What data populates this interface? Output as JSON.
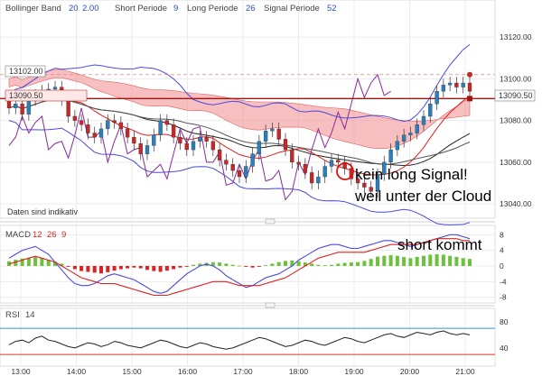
{
  "header": {
    "indicator": "Bollinger Band",
    "bb_p1": "20",
    "bb_p2": "2.00",
    "short_label": "Short Periode",
    "short_val": "9",
    "long_label": "Long Periode",
    "long_val": "26",
    "signal_label": "Signal Periode",
    "signal_val": "52"
  },
  "footer_note": "Daten sind indikativ",
  "annotations": {
    "line1": "kein long Signal!",
    "line2": "weil unter der Cloud",
    "macd_note": "short kommt"
  },
  "price_labels": {
    "left_top": "13102.00",
    "left_bottom": "13090.50",
    "right": "13090.50"
  },
  "macd_header": {
    "name": "MACD",
    "p1": "12",
    "p2": "26",
    "p3": "9"
  },
  "rsi_header": {
    "name": "RSI",
    "p1": "14"
  },
  "colors": {
    "up": "#2c7fb8",
    "down": "#c62828",
    "cloud": "#f08a8a",
    "bb": "#4a4ae0",
    "chikou": "#8a2a9a",
    "macd_line": "#4a4ae0",
    "signal_line": "#e02020",
    "hist_up": "#6cc23a",
    "hist_down": "#e02020",
    "rsi_line": "#222222"
  },
  "chart_data": [
    {
      "type": "candlestick",
      "title": "",
      "x_ticks": [
        "13:00",
        "14:00",
        "15:00",
        "16:00",
        "17:00",
        "18:00",
        "19:00",
        "20:00",
        "21:00"
      ],
      "y_ticks": [
        13040,
        13060,
        13080,
        13100,
        13120
      ],
      "ylim": [
        13034,
        13130
      ],
      "open": [
        13090,
        13086,
        13088,
        13083,
        13090,
        13092,
        13094,
        13095,
        13096,
        13090,
        13082,
        13080,
        13078,
        13074,
        13072,
        13076,
        13080,
        13079,
        13076,
        13072,
        13069,
        13064,
        13068,
        13073,
        13080,
        13078,
        13072,
        13069,
        13066,
        13070,
        13072,
        13070,
        13066,
        13061,
        13059,
        13056,
        13053,
        13058,
        13064,
        13070,
        13075,
        13076,
        13071,
        13066,
        13060,
        13059,
        13055,
        13050,
        13053,
        13058,
        13061,
        13060,
        13057,
        13052,
        13050,
        13048,
        13046,
        13054,
        13060,
        13066,
        13070,
        13073,
        13074,
        13078,
        13082,
        13088,
        13094,
        13097,
        13098,
        13096,
        13098
      ],
      "close": [
        13086,
        13088,
        13083,
        13090,
        13092,
        13094,
        13095,
        13096,
        13090,
        13082,
        13080,
        13078,
        13074,
        13072,
        13076,
        13080,
        13079,
        13076,
        13072,
        13069,
        13064,
        13068,
        13073,
        13080,
        13078,
        13072,
        13069,
        13066,
        13070,
        13072,
        13070,
        13066,
        13061,
        13059,
        13056,
        13053,
        13058,
        13064,
        13070,
        13075,
        13076,
        13071,
        13066,
        13060,
        13059,
        13055,
        13050,
        13053,
        13058,
        13061,
        13060,
        13057,
        13052,
        13050,
        13048,
        13046,
        13054,
        13060,
        13066,
        13070,
        13073,
        13074,
        13078,
        13082,
        13088,
        13094,
        13097,
        13098,
        13096,
        13098,
        13094
      ],
      "high_offset": 3,
      "low_offset": 3,
      "series": [
        {
          "name": "",
          "kind": "line"
        }
      ]
    },
    {
      "type": "bar",
      "title": "",
      "y_ticks": [
        -8,
        -4,
        0,
        4,
        8
      ],
      "ylim": [
        -9,
        9
      ],
      "values": [
        1.2,
        1.6,
        1.9,
        2.1,
        2.3,
        2.0,
        1.6,
        1.1,
        0.6,
        -0.2,
        -0.8,
        -1.3,
        -1.5,
        -1.7,
        -1.9,
        -1.6,
        -1.2,
        -0.8,
        -0.6,
        -0.4,
        -0.6,
        -1.0,
        -1.3,
        -1.5,
        -1.2,
        -0.8,
        -0.4,
        -0.2,
        0.3,
        0.6,
        0.8,
        1.0,
        0.9,
        0.6,
        0.3,
        0.1,
        -0.2,
        -0.4,
        -0.2,
        0.2,
        0.6,
        1.0,
        1.3,
        1.4,
        1.2,
        0.9,
        0.6,
        0.3,
        0.2,
        0.3,
        0.6,
        0.8,
        0.9,
        1.0,
        1.3,
        1.8,
        2.4,
        2.6,
        2.8,
        2.6,
        2.3,
        2.0,
        2.3,
        2.6,
        2.9,
        3.0,
        2.9,
        2.6,
        2.3,
        2.0,
        1.8
      ],
      "series": [
        {
          "name": "",
          "values": [
            2,
            3,
            4,
            4.5,
            5,
            4,
            3,
            1,
            -1,
            -3,
            -4.5,
            -5,
            -5,
            -4.5,
            -3.5,
            -2.5,
            -2,
            -2.5,
            -3,
            -3.5,
            -4.5,
            -5.5,
            -6.5,
            -7,
            -6.5,
            -5,
            -3.5,
            -2,
            -1,
            0,
            0.5,
            0,
            -1,
            -2.5,
            -3.5,
            -4.5,
            -5.5,
            -5,
            -4,
            -3,
            -2.5,
            -2,
            -1,
            0,
            1.5,
            2.5,
            3.5,
            4.5,
            5,
            5.5,
            5.5,
            5,
            4.5,
            4.5,
            5,
            5.5,
            6,
            6.5,
            6.5,
            6,
            5.5,
            5,
            5.5,
            6,
            6.5,
            7,
            7.5,
            8,
            8,
            7.5,
            7
          ]
        },
        {
          "name": "",
          "values": [
            0.5,
            1,
            1.5,
            2,
            2.5,
            2,
            1.5,
            1,
            0,
            -1,
            -2,
            -3,
            -3.5,
            -4,
            -4.5,
            -4.5,
            -4.5,
            -5,
            -5.5,
            -6,
            -6.5,
            -7,
            -7.5,
            -7.5,
            -7.5,
            -7,
            -6.5,
            -6,
            -5.5,
            -5,
            -4.5,
            -4,
            -4,
            -4,
            -4.5,
            -5,
            -5,
            -5,
            -5,
            -4.5,
            -4,
            -3.5,
            -3,
            -2,
            -1,
            0,
            1,
            2,
            2.5,
            3,
            3.5,
            3.5,
            3.5,
            3.5,
            3.5,
            4,
            4.5,
            5,
            5.5,
            5.5,
            5.5,
            5.5,
            5.5,
            6,
            6.5,
            7,
            7,
            7,
            7,
            6.5,
            6.5
          ]
        }
      ]
    },
    {
      "type": "line",
      "title": "",
      "y_ticks": [
        40,
        80
      ],
      "ylim": [
        15,
        95
      ],
      "series": [
        {
          "name": "",
          "values": [
            45,
            50,
            52,
            48,
            55,
            58,
            52,
            50,
            46,
            42,
            40,
            44,
            48,
            46,
            42,
            45,
            50,
            48,
            44,
            42,
            40,
            44,
            48,
            52,
            50,
            46,
            42,
            40,
            44,
            48,
            46,
            42,
            40,
            38,
            40,
            44,
            48,
            52,
            56,
            54,
            50,
            46,
            42,
            44,
            48,
            52,
            50,
            46,
            44,
            48,
            52,
            56,
            54,
            50,
            48,
            52,
            56,
            60,
            62,
            58,
            56,
            60,
            64,
            62,
            60,
            64,
            66,
            62,
            60,
            62,
            60
          ]
        }
      ],
      "reference_lines": [
        30,
        70
      ]
    }
  ]
}
